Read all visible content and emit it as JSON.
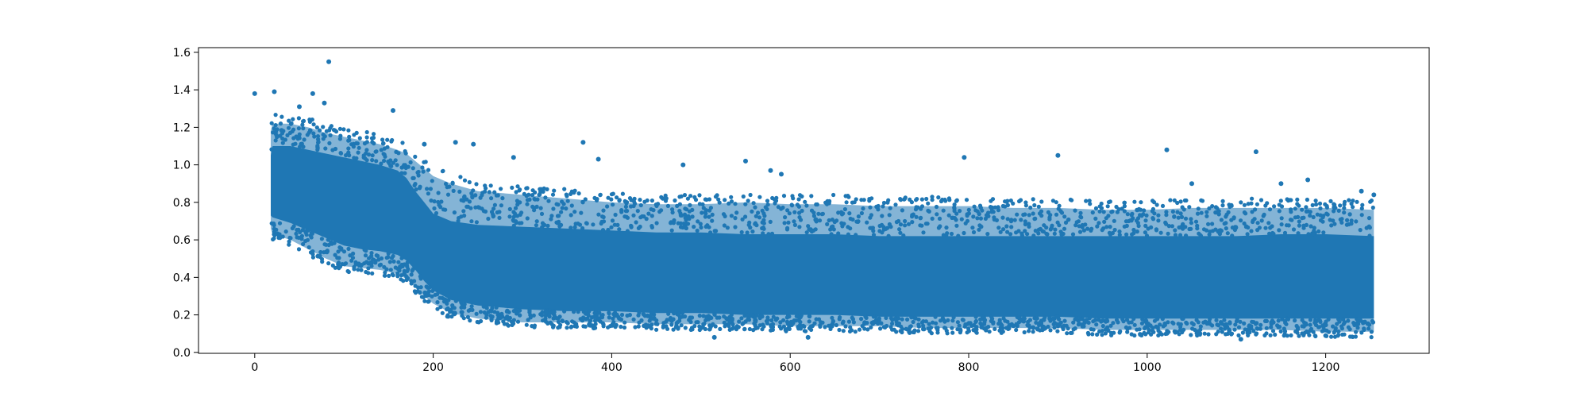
{
  "chart_data": {
    "type": "scatter",
    "title": "",
    "xlabel": "",
    "ylabel": "",
    "xlim": [
      -63,
      1316
    ],
    "ylim": [
      -0.005,
      1.625
    ],
    "x_ticks": [
      0,
      200,
      400,
      600,
      800,
      1000,
      1200
    ],
    "x_tick_labels": [
      "0",
      "200",
      "400",
      "600",
      "800",
      "1000",
      "1200"
    ],
    "y_ticks": [
      0.0,
      0.2,
      0.4,
      0.6,
      0.8,
      1.0,
      1.2,
      1.4,
      1.6
    ],
    "y_tick_labels": [
      "0.0",
      "0.2",
      "0.4",
      "0.6",
      "0.8",
      "1.0",
      "1.2",
      "1.4",
      "1.6"
    ],
    "grid": false,
    "marker_color": "#1f77b4",
    "series": [
      {
        "points": [
          [
            0,
            1.38
          ],
          [
            22,
            1.39
          ],
          [
            50,
            1.31
          ],
          [
            65,
            1.38
          ],
          [
            78,
            1.33
          ],
          [
            83,
            1.55
          ],
          [
            155,
            1.29
          ],
          [
            190,
            1.11
          ],
          [
            225,
            1.12
          ],
          [
            245,
            1.11
          ],
          [
            290,
            1.04
          ],
          [
            368,
            1.12
          ],
          [
            385,
            1.03
          ],
          [
            480,
            1.0
          ],
          [
            550,
            1.02
          ],
          [
            578,
            0.97
          ],
          [
            590,
            0.95
          ],
          [
            795,
            1.04
          ],
          [
            900,
            1.05
          ],
          [
            1022,
            1.08
          ],
          [
            1122,
            1.07
          ],
          [
            1050,
            0.9
          ],
          [
            1150,
            0.9
          ],
          [
            1180,
            0.92
          ],
          [
            1240,
            0.86
          ],
          [
            1254,
            0.84
          ],
          [
            380,
            0.13
          ],
          [
            515,
            0.08
          ],
          [
            620,
            0.08
          ],
          [
            1105,
            0.07
          ],
          [
            1200,
            0.09
          ]
        ],
        "density_envelope": {
          "x_range": [
            18,
            1254
          ],
          "x": [
            18,
            20,
            40,
            60,
            80,
            100,
            120,
            140,
            160,
            170,
            180,
            190,
            200,
            220,
            250,
            300,
            350,
            400,
            450,
            500,
            550,
            600,
            650,
            700,
            750,
            800,
            850,
            900,
            950,
            1000,
            1050,
            1100,
            1150,
            1200,
            1254
          ],
          "y_low_outer": [
            0.66,
            0.63,
            0.6,
            0.55,
            0.5,
            0.46,
            0.45,
            0.44,
            0.42,
            0.39,
            0.35,
            0.3,
            0.26,
            0.21,
            0.18,
            0.16,
            0.16,
            0.16,
            0.15,
            0.15,
            0.15,
            0.14,
            0.14,
            0.14,
            0.13,
            0.13,
            0.13,
            0.13,
            0.12,
            0.12,
            0.12,
            0.12,
            0.12,
            0.11,
            0.11
          ],
          "y_high_outer": [
            1.18,
            1.22,
            1.22,
            1.2,
            1.17,
            1.15,
            1.13,
            1.11,
            1.08,
            1.06,
            1.02,
            0.98,
            0.94,
            0.9,
            0.86,
            0.84,
            0.82,
            0.8,
            0.79,
            0.79,
            0.8,
            0.79,
            0.79,
            0.78,
            0.78,
            0.78,
            0.77,
            0.77,
            0.76,
            0.76,
            0.77,
            0.77,
            0.77,
            0.77,
            0.76
          ],
          "y_low_core": [
            0.73,
            0.72,
            0.69,
            0.65,
            0.61,
            0.57,
            0.55,
            0.54,
            0.52,
            0.49,
            0.44,
            0.38,
            0.33,
            0.28,
            0.25,
            0.23,
            0.22,
            0.22,
            0.21,
            0.21,
            0.2,
            0.2,
            0.2,
            0.19,
            0.19,
            0.19,
            0.19,
            0.19,
            0.18,
            0.18,
            0.18,
            0.18,
            0.18,
            0.18,
            0.18
          ],
          "y_high_core": [
            1.05,
            1.1,
            1.1,
            1.08,
            1.06,
            1.04,
            1.02,
            1.0,
            0.97,
            0.93,
            0.86,
            0.8,
            0.74,
            0.7,
            0.68,
            0.67,
            0.66,
            0.65,
            0.64,
            0.64,
            0.63,
            0.63,
            0.63,
            0.62,
            0.62,
            0.62,
            0.62,
            0.62,
            0.62,
            0.62,
            0.62,
            0.62,
            0.63,
            0.63,
            0.62
          ]
        }
      }
    ]
  }
}
